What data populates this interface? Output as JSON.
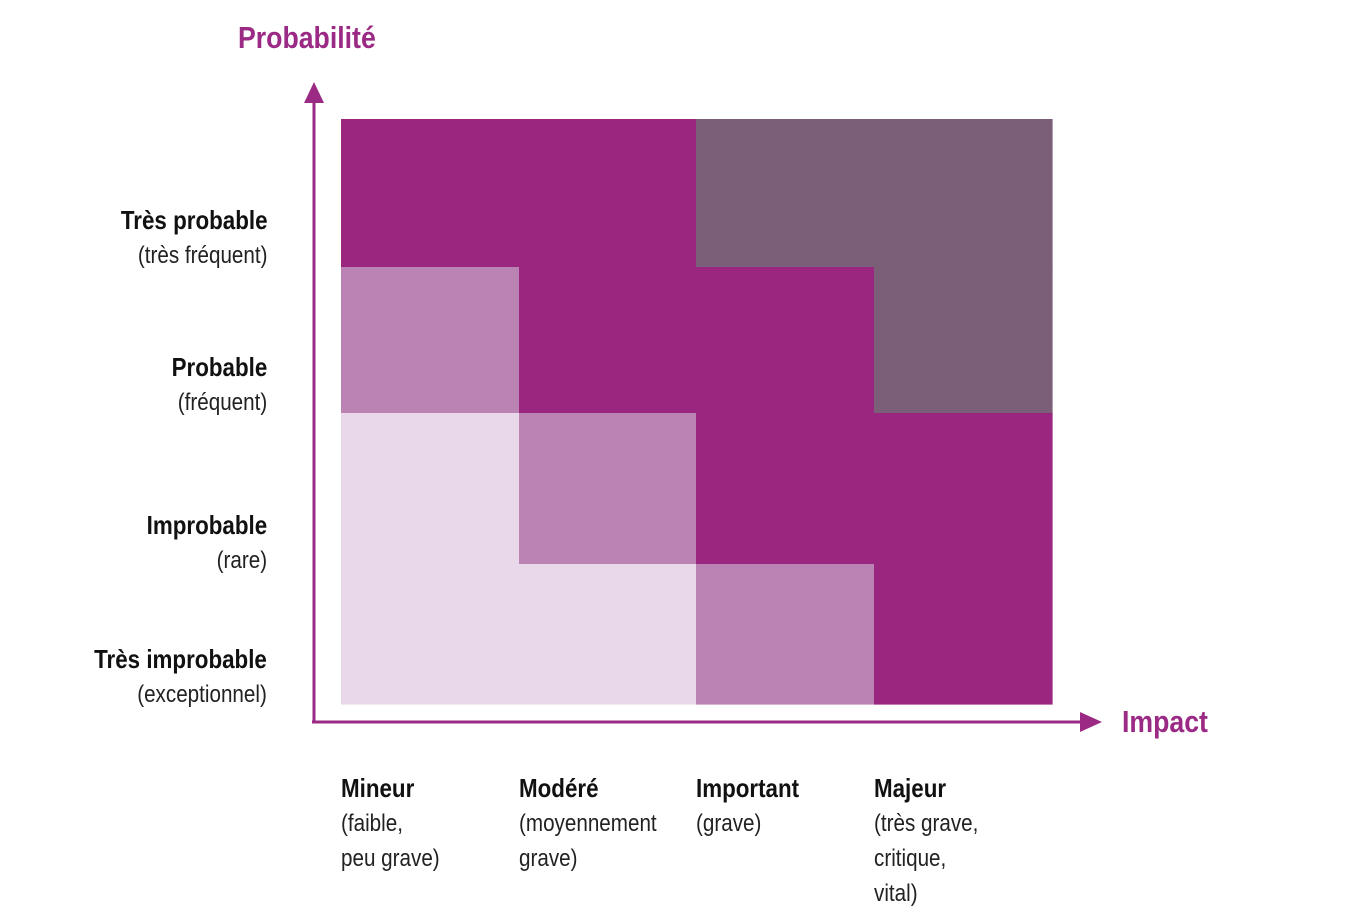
{
  "y_axis": {
    "title": "Probabilité"
  },
  "x_axis": {
    "title": "Impact"
  },
  "probability_levels": [
    {
      "label": "Très probable",
      "detail": "(très fréquent)"
    },
    {
      "label": "Probable",
      "detail": "(fréquent)"
    },
    {
      "label": "Improbable",
      "detail": "(rare)"
    },
    {
      "label": "Très improbable",
      "detail": "(exceptionnel)"
    }
  ],
  "impact_levels": [
    {
      "label": "Mineur",
      "detail": "(faible,\npeu grave)"
    },
    {
      "label": "Modéré",
      "detail": "(moyennement\ngrave)"
    },
    {
      "label": "Important",
      "detail": "(grave)"
    },
    {
      "label": "Majeur",
      "detail": "(très grave,\ncritique,\nvital)"
    }
  ],
  "colors": {
    "axis": "#9b2a85",
    "very_low": "#e8d8ea",
    "low": "#bb82b4",
    "high": "#9b2680",
    "very_high": "#7b5f79"
  },
  "risk_matrix": {
    "rows_top_to_bottom": [
      "Très probable",
      "Probable",
      "Improbable",
      "Très improbable"
    ],
    "columns_left_to_right": [
      "Mineur",
      "Modéré",
      "Important",
      "Majeur"
    ],
    "levels": [
      [
        "high",
        "high",
        "very_high",
        "very_high"
      ],
      [
        "low",
        "high",
        "high",
        "very_high"
      ],
      [
        "very_low",
        "low",
        "high",
        "high"
      ],
      [
        "very_low",
        "very_low",
        "low",
        "high"
      ]
    ]
  }
}
